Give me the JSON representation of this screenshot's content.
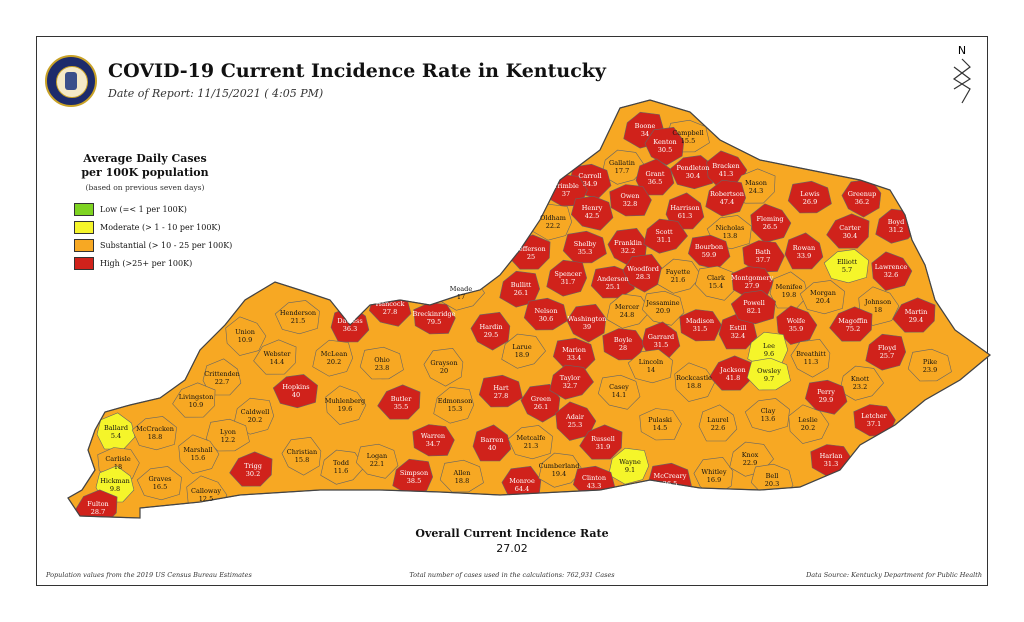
{
  "header": {
    "title": "COVID-19 Current Incidence Rate in Kentucky",
    "subtitle": "Date of Report: 11/15/2021 ( 4:05 PM)"
  },
  "compass": {
    "label": "N"
  },
  "colors": {
    "low": "#7ed321",
    "moderate": "#f5f52a",
    "substantial": "#f7a823",
    "high": "#d0221b",
    "border": "#666666"
  },
  "legend": {
    "title_line1": "Average Daily Cases",
    "title_line2": "per 100K population",
    "note": "(based on previous seven days)",
    "items": [
      {
        "label": "Low (=< 1 per 100K)",
        "level": "low"
      },
      {
        "label": "Moderate (> 1 - 10 per 100K)",
        "level": "moderate"
      },
      {
        "label": "Substantial (> 10 - 25 per 100K)",
        "level": "substantial"
      },
      {
        "label": "High (>25+ per 100K)",
        "level": "high"
      }
    ]
  },
  "counties": [
    {
      "name": "Boone",
      "value": "34",
      "level": "high"
    },
    {
      "name": "Campbell",
      "value": "15.5",
      "level": "substantial"
    },
    {
      "name": "Kenton",
      "value": "30.5",
      "level": "high"
    },
    {
      "name": "Gallatin",
      "value": "17.7",
      "level": "substantial"
    },
    {
      "name": "Carroll",
      "value": "34.9",
      "level": "high"
    },
    {
      "name": "Trimble",
      "value": "37",
      "level": "high"
    },
    {
      "name": "Grant",
      "value": "36.5",
      "level": "high"
    },
    {
      "name": "Pendleton",
      "value": "30.4",
      "level": "high"
    },
    {
      "name": "Bracken",
      "value": "41.3",
      "level": "high"
    },
    {
      "name": "Mason",
      "value": "24.3",
      "level": "substantial"
    },
    {
      "name": "Robertson",
      "value": "47.4",
      "level": "high"
    },
    {
      "name": "Lewis",
      "value": "26.9",
      "level": "high"
    },
    {
      "name": "Greenup",
      "value": "36.2",
      "level": "high"
    },
    {
      "name": "Boyd",
      "value": "31.2",
      "level": "high"
    },
    {
      "name": "Henry",
      "value": "42.5",
      "level": "high"
    },
    {
      "name": "Owen",
      "value": "32.8",
      "level": "high"
    },
    {
      "name": "Harrison",
      "value": "61.3",
      "level": "high"
    },
    {
      "name": "Nicholas",
      "value": "13.8",
      "level": "substantial"
    },
    {
      "name": "Fleming",
      "value": "26.5",
      "level": "high"
    },
    {
      "name": "Carter",
      "value": "30.4",
      "level": "high"
    },
    {
      "name": "Oldham",
      "value": "22.2",
      "level": "substantial"
    },
    {
      "name": "Shelby",
      "value": "35.3",
      "level": "high"
    },
    {
      "name": "Franklin",
      "value": "32.2",
      "level": "high"
    },
    {
      "name": "Scott",
      "value": "31.1",
      "level": "high"
    },
    {
      "name": "Bourbon",
      "value": "59.9",
      "level": "high"
    },
    {
      "name": "Bath",
      "value": "37.7",
      "level": "high"
    },
    {
      "name": "Rowan",
      "value": "33.9",
      "level": "high"
    },
    {
      "name": "Elliott",
      "value": "5.7",
      "level": "moderate"
    },
    {
      "name": "Lawrence",
      "value": "32.6",
      "level": "high"
    },
    {
      "name": "Jefferson",
      "value": "25",
      "level": "high"
    },
    {
      "name": "Spencer",
      "value": "31.7",
      "level": "high"
    },
    {
      "name": "Anderson",
      "value": "25.1",
      "level": "high"
    },
    {
      "name": "Woodford",
      "value": "28.3",
      "level": "high"
    },
    {
      "name": "Fayette",
      "value": "21.6",
      "level": "substantial"
    },
    {
      "name": "Clark",
      "value": "15.4",
      "level": "substantial"
    },
    {
      "name": "Montgomery",
      "value": "27.9",
      "level": "high"
    },
    {
      "name": "Menifee",
      "value": "19.8",
      "level": "substantial"
    },
    {
      "name": "Morgan",
      "value": "20.4",
      "level": "substantial"
    },
    {
      "name": "Johnson",
      "value": "18",
      "level": "substantial"
    },
    {
      "name": "Martin",
      "value": "29.4",
      "level": "high"
    },
    {
      "name": "Bullitt",
      "value": "26.1",
      "level": "high"
    },
    {
      "name": "Nelson",
      "value": "30.6",
      "level": "high"
    },
    {
      "name": "Washington",
      "value": "39",
      "level": "high"
    },
    {
      "name": "Mercer",
      "value": "24.8",
      "level": "substantial"
    },
    {
      "name": "Jessamine",
      "value": "20.9",
      "level": "substantial"
    },
    {
      "name": "Madison",
      "value": "31.5",
      "level": "high"
    },
    {
      "name": "Estill",
      "value": "32.4",
      "level": "high"
    },
    {
      "name": "Powell",
      "value": "82.1",
      "level": "high"
    },
    {
      "name": "Wolfe",
      "value": "35.9",
      "level": "high"
    },
    {
      "name": "Magoffin",
      "value": "75.2",
      "level": "high"
    },
    {
      "name": "Floyd",
      "value": "25.7",
      "level": "high"
    },
    {
      "name": "Pike",
      "value": "23.9",
      "level": "substantial"
    },
    {
      "name": "Hardin",
      "value": "29.5",
      "level": "high"
    },
    {
      "name": "Meade",
      "value": "17",
      "level": "substantial"
    },
    {
      "name": "Hancock",
      "value": "27.8",
      "level": "high"
    },
    {
      "name": "Breckinridge",
      "value": "79.5",
      "level": "high"
    },
    {
      "name": "Daviess",
      "value": "36.3",
      "level": "high"
    },
    {
      "name": "Henderson",
      "value": "21.5",
      "level": "substantial"
    },
    {
      "name": "Union",
      "value": "10.9",
      "level": "substantial"
    },
    {
      "name": "Webster",
      "value": "14.4",
      "level": "substantial"
    },
    {
      "name": "McLean",
      "value": "20.2",
      "level": "substantial"
    },
    {
      "name": "Ohio",
      "value": "23.8",
      "level": "substantial"
    },
    {
      "name": "Grayson",
      "value": "20",
      "level": "substantial"
    },
    {
      "name": "Larue",
      "value": "18.9",
      "level": "substantial"
    },
    {
      "name": "Marion",
      "value": "33.4",
      "level": "high"
    },
    {
      "name": "Boyle",
      "value": "28",
      "level": "high"
    },
    {
      "name": "Garrard",
      "value": "31.5",
      "level": "high"
    },
    {
      "name": "Lincoln",
      "value": "14",
      "level": "substantial"
    },
    {
      "name": "Rockcastle",
      "value": "18.8",
      "level": "substantial"
    },
    {
      "name": "Jackson",
      "value": "41.8",
      "level": "high"
    },
    {
      "name": "Lee",
      "value": "9.6",
      "level": "moderate"
    },
    {
      "name": "Owsley",
      "value": "9.7",
      "level": "moderate"
    },
    {
      "name": "Breathitt",
      "value": "11.3",
      "level": "substantial"
    },
    {
      "name": "Knott",
      "value": "23.2",
      "level": "substantial"
    },
    {
      "name": "Perry",
      "value": "29.9",
      "level": "high"
    },
    {
      "name": "Letcher",
      "value": "37.1",
      "level": "high"
    },
    {
      "name": "Crittenden",
      "value": "22.7",
      "level": "substantial"
    },
    {
      "name": "Hopkins",
      "value": "40",
      "level": "high"
    },
    {
      "name": "Muhlenberg",
      "value": "19.6",
      "level": "substantial"
    },
    {
      "name": "Butler",
      "value": "35.5",
      "level": "high"
    },
    {
      "name": "Edmonson",
      "value": "15.3",
      "level": "substantial"
    },
    {
      "name": "Hart",
      "value": "27.8",
      "level": "high"
    },
    {
      "name": "Green",
      "value": "26.1",
      "level": "high"
    },
    {
      "name": "Taylor",
      "value": "32.7",
      "level": "high"
    },
    {
      "name": "Casey",
      "value": "14.1",
      "level": "substantial"
    },
    {
      "name": "Pulaski",
      "value": "14.5",
      "level": "substantial"
    },
    {
      "name": "Laurel",
      "value": "22.6",
      "level": "substantial"
    },
    {
      "name": "Clay",
      "value": "13.6",
      "level": "substantial"
    },
    {
      "name": "Leslie",
      "value": "20.2",
      "level": "substantial"
    },
    {
      "name": "Livingston",
      "value": "10.9",
      "level": "substantial"
    },
    {
      "name": "Caldwell",
      "value": "20.2",
      "level": "substantial"
    },
    {
      "name": "Lyon",
      "value": "12.2",
      "level": "substantial"
    },
    {
      "name": "Christian",
      "value": "15.8",
      "level": "substantial"
    },
    {
      "name": "Todd",
      "value": "11.6",
      "level": "substantial"
    },
    {
      "name": "Logan",
      "value": "22.1",
      "level": "substantial"
    },
    {
      "name": "Warren",
      "value": "34.7",
      "level": "high"
    },
    {
      "name": "Barren",
      "value": "40",
      "level": "high"
    },
    {
      "name": "Metcalfe",
      "value": "21.3",
      "level": "substantial"
    },
    {
      "name": "Adair",
      "value": "25.3",
      "level": "high"
    },
    {
      "name": "Russell",
      "value": "31.9",
      "level": "high"
    },
    {
      "name": "Wayne",
      "value": "9.1",
      "level": "moderate"
    },
    {
      "name": "McCreary",
      "value": "26.5",
      "level": "high"
    },
    {
      "name": "Whitley",
      "value": "16.9",
      "level": "substantial"
    },
    {
      "name": "Knox",
      "value": "22.9",
      "level": "substantial"
    },
    {
      "name": "Bell",
      "value": "20.3",
      "level": "substantial"
    },
    {
      "name": "Harlan",
      "value": "31.3",
      "level": "high"
    },
    {
      "name": "Ballard",
      "value": "5.4",
      "level": "moderate"
    },
    {
      "name": "McCracken",
      "value": "18.8",
      "level": "substantial"
    },
    {
      "name": "Marshall",
      "value": "15.6",
      "level": "substantial"
    },
    {
      "name": "Trigg",
      "value": "30.2",
      "level": "high"
    },
    {
      "name": "Simpson",
      "value": "38.5",
      "level": "high"
    },
    {
      "name": "Allen",
      "value": "18.8",
      "level": "substantial"
    },
    {
      "name": "Monroe",
      "value": "64.4",
      "level": "high"
    },
    {
      "name": "Cumberland",
      "value": "19.4",
      "level": "substantial"
    },
    {
      "name": "Clinton",
      "value": "43.3",
      "level": "high"
    },
    {
      "name": "Carlisle",
      "value": "18",
      "level": "substantial"
    },
    {
      "name": "Hickman",
      "value": "9.8",
      "level": "moderate"
    },
    {
      "name": "Graves",
      "value": "16.5",
      "level": "substantial"
    },
    {
      "name": "Calloway",
      "value": "12.5",
      "level": "substantial"
    },
    {
      "name": "Fulton",
      "value": "28.7",
      "level": "high"
    }
  ],
  "overall": {
    "title": "Overall Current Incidence Rate",
    "value": "27.02"
  },
  "footer": {
    "left": "Population values from the 2019 US Census Bureau Estimates",
    "center": "Total number of cases used in the calculations: 762,931 Cases",
    "right": "Data Source: Kentucky Department for Public Health"
  }
}
